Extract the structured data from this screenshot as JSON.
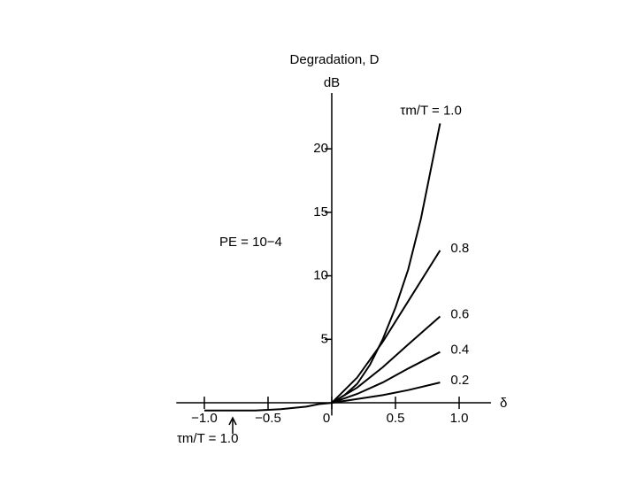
{
  "chart_data": {
    "type": "line",
    "title": "Degradation, D",
    "ylabel": "dB",
    "xlabel": "δ",
    "annotations": [
      "PE = 10−4",
      "τm/T = 1.0"
    ],
    "xlim": [
      -1.22,
      1.25
    ],
    "ylim": [
      -1,
      24.4
    ],
    "xticks": [
      {
        "value": -1.0,
        "label": "−1.0"
      },
      {
        "value": -0.5,
        "label": "−0.5"
      },
      0,
      0.5,
      {
        "value": 1.0,
        "label": "1.0"
      }
    ],
    "yticks": [
      5,
      10,
      15,
      20
    ],
    "color": "#000000",
    "series": [
      {
        "name": "τm/T = 1.0",
        "x": [
          -1.0,
          -0.8,
          -0.6,
          -0.4,
          -0.2,
          -0.1,
          0,
          0.1,
          0.2,
          0.3,
          0.4,
          0.5,
          0.6,
          0.7,
          0.8,
          0.85
        ],
        "values": [
          -0.6,
          -0.6,
          -0.6,
          -0.5,
          -0.3,
          -0.1,
          0,
          0.6,
          1.5,
          3,
          5,
          7.5,
          10.5,
          14.5,
          19.5,
          22
        ]
      },
      {
        "name": "0.8",
        "x": [
          0,
          0.2,
          0.4,
          0.6,
          0.85
        ],
        "values": [
          0,
          2,
          4.8,
          8,
          12
        ]
      },
      {
        "name": "0.6",
        "x": [
          0,
          0.2,
          0.4,
          0.6,
          0.85
        ],
        "values": [
          0,
          1.2,
          2.8,
          4.6,
          6.8
        ]
      },
      {
        "name": "0.4",
        "x": [
          0,
          0.2,
          0.4,
          0.6,
          0.85
        ],
        "values": [
          0,
          0.7,
          1.6,
          2.7,
          4
        ]
      },
      {
        "name": "0.2",
        "x": [
          0,
          0.2,
          0.4,
          0.6,
          0.85
        ],
        "values": [
          0,
          0.3,
          0.6,
          1.0,
          1.6
        ]
      }
    ]
  }
}
